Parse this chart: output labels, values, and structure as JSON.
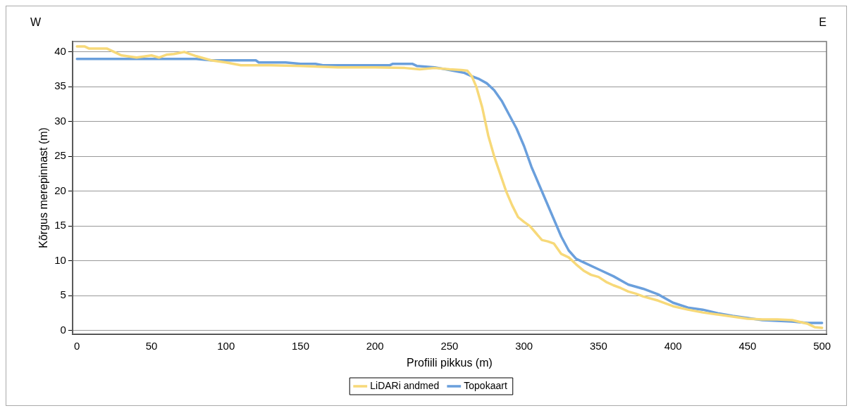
{
  "chart_data": {
    "type": "line",
    "xlabel": "Profiili pikkus (m)",
    "ylabel": "Kõrgus merepinnast (m)",
    "annotations": [
      "W",
      "E"
    ],
    "xlim": [
      -3,
      503
    ],
    "xticks": [
      0,
      50,
      100,
      150,
      200,
      250,
      300,
      350,
      400,
      450,
      500
    ],
    "ylim": [
      -0.5,
      41.5
    ],
    "yticks": [
      0,
      5,
      10,
      15,
      20,
      25,
      30,
      35,
      40
    ],
    "grid": "y",
    "legend": "bottom",
    "marker": "none",
    "line_style": "solid",
    "series": [
      {
        "name": "LiDARi andmed",
        "color": "#f7d979",
        "x": [
          0,
          5,
          8,
          20,
          25,
          30,
          40,
          50,
          55,
          60,
          65,
          72,
          80,
          90,
          100,
          110,
          130,
          150,
          175,
          200,
          220,
          230,
          240,
          250,
          258,
          262,
          265,
          268,
          272,
          276,
          280,
          284,
          288,
          292,
          296,
          300,
          304,
          308,
          312,
          316,
          320,
          325,
          330,
          335,
          340,
          345,
          350,
          355,
          360,
          365,
          370,
          375,
          380,
          390,
          400,
          410,
          420,
          430,
          440,
          450,
          460,
          470,
          480,
          490,
          495,
          500
        ],
        "values": [
          40.8,
          40.8,
          40.5,
          40.5,
          40.0,
          39.5,
          39.2,
          39.5,
          39.2,
          39.6,
          39.7,
          40.0,
          39.4,
          38.8,
          38.5,
          38.1,
          38.1,
          38.0,
          37.8,
          37.8,
          37.7,
          37.5,
          37.7,
          37.5,
          37.4,
          37.3,
          36.5,
          35,
          32,
          28,
          25,
          22.5,
          20,
          18,
          16.3,
          15.6,
          15,
          14,
          13,
          12.8,
          12.5,
          11,
          10.5,
          9.5,
          8.6,
          8,
          7.7,
          7,
          6.5,
          6.1,
          5.6,
          5.3,
          4.9,
          4.3,
          3.5,
          3,
          2.6,
          2.3,
          2,
          1.7,
          1.6,
          1.6,
          1.5,
          1.0,
          0.5,
          0.4
        ]
      },
      {
        "name": "Topokaart",
        "color": "#6a9fdc",
        "x": [
          0,
          80,
          90,
          120,
          122,
          140,
          150,
          160,
          165,
          210,
          212,
          225,
          228,
          240,
          250,
          260,
          265,
          270,
          275,
          280,
          285,
          290,
          295,
          300,
          305,
          310,
          315,
          320,
          325,
          330,
          335,
          340,
          350,
          360,
          370,
          380,
          390,
          400,
          410,
          420,
          430,
          440,
          450,
          460,
          470,
          480,
          490,
          500
        ],
        "values": [
          39.0,
          39.0,
          38.8,
          38.8,
          38.5,
          38.5,
          38.3,
          38.3,
          38.1,
          38.1,
          38.3,
          38.3,
          38.0,
          37.8,
          37.4,
          37.0,
          36.5,
          36.1,
          35.5,
          34.5,
          33,
          31,
          29,
          26.5,
          23.5,
          21,
          18.5,
          16,
          13.5,
          11.5,
          10.3,
          9.8,
          8.8,
          7.8,
          6.6,
          6.0,
          5.2,
          4.0,
          3.3,
          3.0,
          2.5,
          2.1,
          1.8,
          1.5,
          1.4,
          1.3,
          1.1,
          1.1
        ]
      }
    ]
  }
}
